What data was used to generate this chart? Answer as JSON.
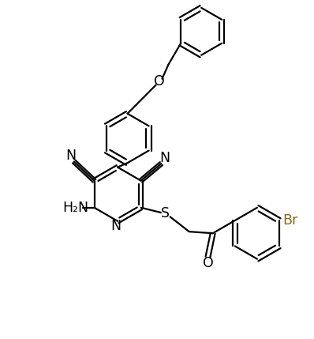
{
  "bg_color": "#ffffff",
  "line_color": "#000000",
  "br_color": "#8B6914",
  "linewidth": 1.6,
  "fontsize": 11.5,
  "figsize": [
    3.98,
    4.29
  ],
  "dpi": 100,
  "xlim": [
    0,
    9.5
  ],
  "ylim": [
    0,
    10.2
  ]
}
